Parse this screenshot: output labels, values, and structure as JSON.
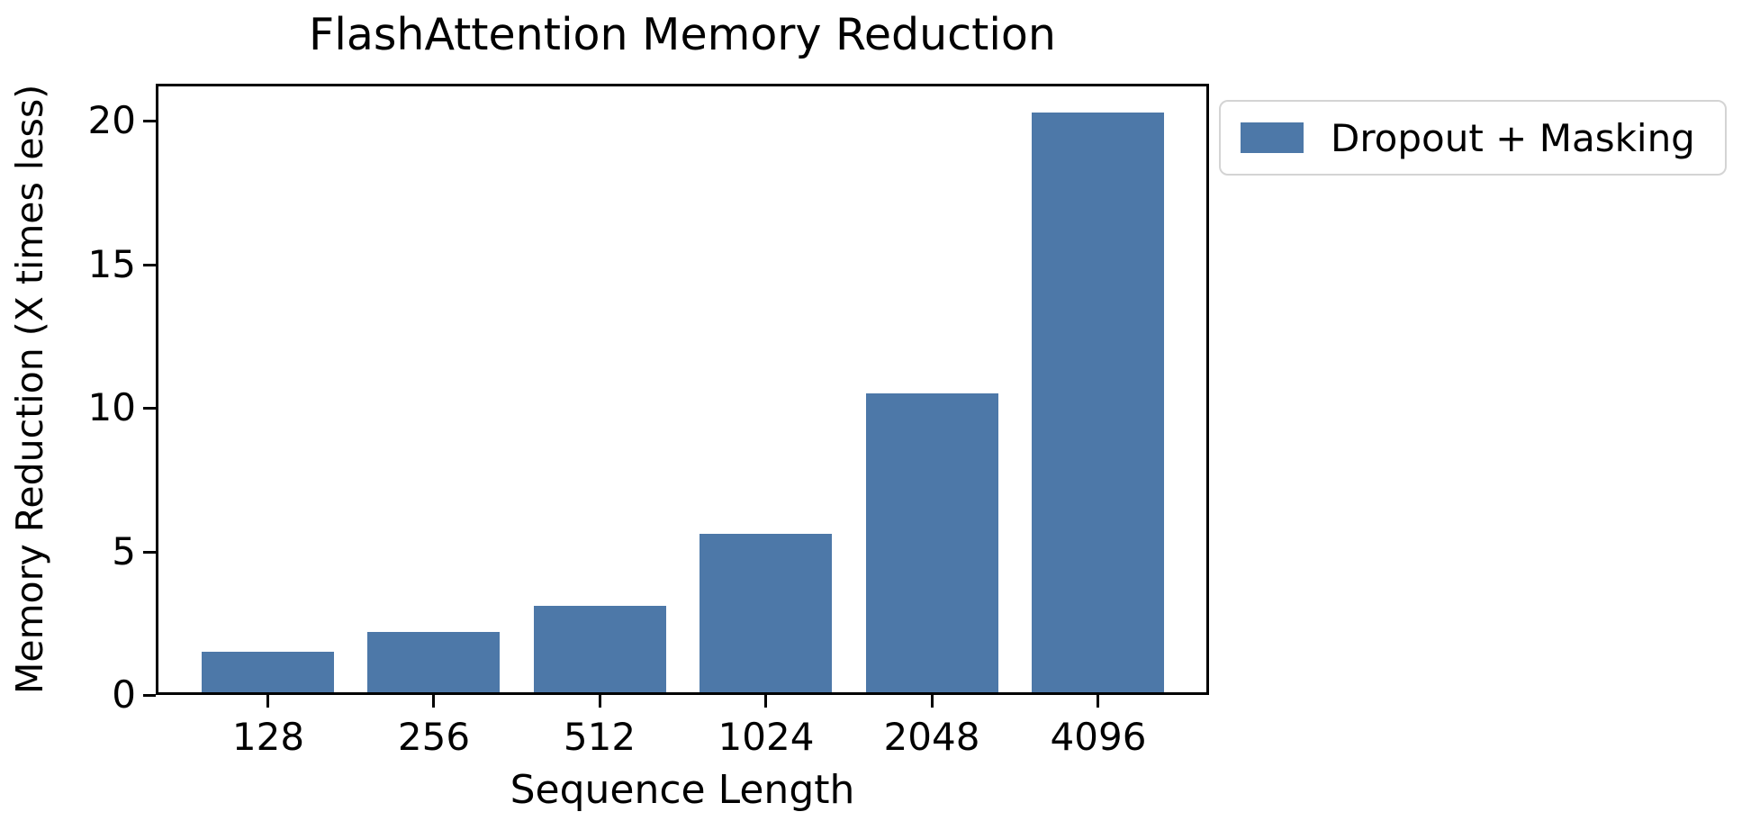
{
  "chart_data": {
    "type": "bar",
    "title": "FlashAttention Memory Reduction",
    "xlabel": "Sequence Length",
    "ylabel": "Memory Reduction (X times less)",
    "categories": [
      "128",
      "256",
      "512",
      "1024",
      "2048",
      "4096"
    ],
    "values": [
      1.5,
      2.2,
      3.1,
      5.6,
      10.5,
      20.3
    ],
    "series": [
      {
        "name": "Dropout + Masking",
        "values": [
          1.5,
          2.2,
          3.1,
          5.6,
          10.5,
          20.3
        ]
      }
    ],
    "yticks": [
      0,
      5,
      10,
      15,
      20
    ],
    "ylim": [
      0,
      21.3
    ],
    "grid": false,
    "legend": {
      "position": "outside-top-right",
      "entries": [
        {
          "label": "Dropout + Masking",
          "color": "#4d78a8"
        }
      ]
    },
    "colors": {
      "bar": "#4d78a8",
      "axis": "#000000",
      "background": "#ffffff",
      "legend_border": "#d4d4d4"
    }
  }
}
